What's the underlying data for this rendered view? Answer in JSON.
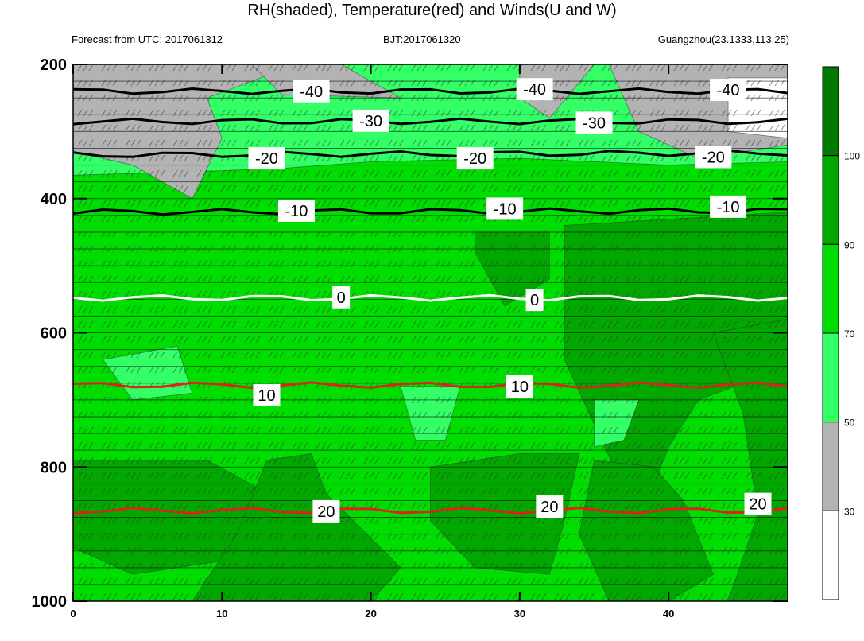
{
  "header": {
    "title": "RH(shaded), Temperature(red) and Winds(U and W)",
    "forecast": "Forecast from UTC: 2017061312",
    "bjt": "BJT:2017061320",
    "location": "Guangzhou(23.1333,113.25)"
  },
  "chart_data": {
    "type": "heatmap",
    "title": "RH(shaded), Temperature(red) and Winds(U and W)",
    "xlabel": "",
    "ylabel": "",
    "xlim": [
      0,
      48
    ],
    "ylim": [
      1000,
      200
    ],
    "x_ticks": [
      0,
      10,
      20,
      30,
      40
    ],
    "y_ticks": [
      200,
      400,
      600,
      800,
      1000
    ],
    "colorbar": {
      "levels": [
        30,
        50,
        70,
        90,
        100
      ],
      "colors": [
        "#ffffff",
        "#b3b3b3",
        "#33ff66",
        "#00dd00",
        "#00a800",
        "#007a00"
      ]
    },
    "temperature_contours": [
      {
        "value": -40,
        "label": "-40",
        "color": "#000000",
        "x": [
          0,
          48
        ],
        "y": [
          240,
          240
        ]
      },
      {
        "value": -30,
        "label": "-30",
        "color": "#000000",
        "x": [
          0,
          48
        ],
        "y": [
          285,
          285
        ]
      },
      {
        "value": -20,
        "label": "-20",
        "color": "#000000",
        "x": [
          0,
          48
        ],
        "y": [
          335,
          332
        ]
      },
      {
        "value": -10,
        "label": "-10",
        "color": "#000000",
        "x": [
          0,
          48
        ],
        "y": [
          420,
          418
        ]
      },
      {
        "value": 0,
        "label": "0",
        "color": "#ffffff",
        "x": [
          0,
          48
        ],
        "y": [
          548,
          548
        ]
      },
      {
        "value": 10,
        "label": "10",
        "color": "#e02020",
        "x": [
          0,
          48
        ],
        "y": [
          678,
          678
        ]
      },
      {
        "value": 20,
        "label": "20",
        "color": "#e02020",
        "x": [
          0,
          48
        ],
        "y": [
          865,
          865
        ]
      }
    ],
    "contour_labels": [
      {
        "text": "-40",
        "x": 16,
        "y": 240
      },
      {
        "text": "-40",
        "x": 31,
        "y": 237
      },
      {
        "text": "-40",
        "x": 44,
        "y": 238
      },
      {
        "text": "-30",
        "x": 20,
        "y": 284
      },
      {
        "text": "-30",
        "x": 35,
        "y": 287
      },
      {
        "text": "-20",
        "x": 13,
        "y": 340
      },
      {
        "text": "-20",
        "x": 27,
        "y": 340
      },
      {
        "text": "-20",
        "x": 43,
        "y": 338
      },
      {
        "text": "-10",
        "x": 15,
        "y": 418
      },
      {
        "text": "-10",
        "x": 29,
        "y": 415
      },
      {
        "text": "-10",
        "x": 44,
        "y": 412
      },
      {
        "text": "0",
        "x": 18,
        "y": 547
      },
      {
        "text": "0",
        "x": 31,
        "y": 551
      },
      {
        "text": "10",
        "x": 13,
        "y": 693
      },
      {
        "text": "10",
        "x": 30,
        "y": 680
      },
      {
        "text": "20",
        "x": 17,
        "y": 866
      },
      {
        "text": "20",
        "x": 32,
        "y": 859
      },
      {
        "text": "20",
        "x": 46,
        "y": 855
      }
    ]
  }
}
